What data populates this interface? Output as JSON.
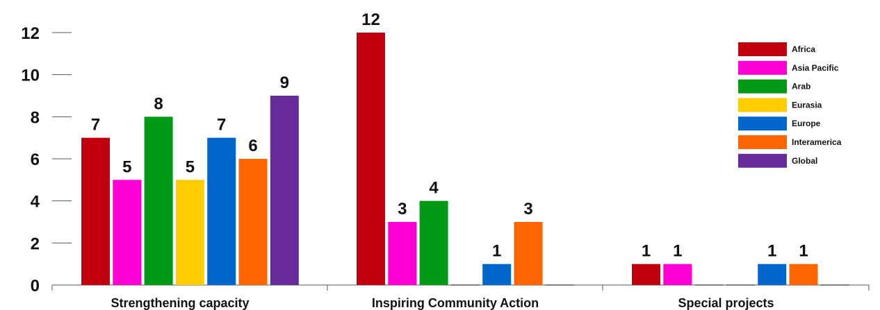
{
  "chart_data": {
    "type": "bar",
    "title": "",
    "xlabel": "",
    "ylabel": "",
    "ylim": [
      0,
      12
    ],
    "yticks": [
      0,
      2,
      4,
      6,
      8,
      10,
      12
    ],
    "grid": false,
    "legend_position": "top-right",
    "categories": [
      "Strengthening capacity",
      "Inspiring Community Action",
      "Special projects"
    ],
    "series": [
      {
        "name": "Africa",
        "color": "#c0000e",
        "values": [
          7,
          12,
          1
        ]
      },
      {
        "name": "Asia Pacific",
        "color": "#ff00d4",
        "values": [
          5,
          3,
          1
        ]
      },
      {
        "name": "Arab",
        "color": "#009a17",
        "values": [
          8,
          4,
          0
        ]
      },
      {
        "name": "Eurasia",
        "color": "#ffcc00",
        "values": [
          5,
          0,
          0
        ]
      },
      {
        "name": "Europe",
        "color": "#0066cc",
        "values": [
          7,
          1,
          1
        ]
      },
      {
        "name": "Interamerica",
        "color": "#ff6600",
        "values": [
          6,
          3,
          1
        ]
      },
      {
        "name": "Global",
        "color": "#662a99",
        "values": [
          9,
          0,
          0
        ]
      }
    ]
  }
}
